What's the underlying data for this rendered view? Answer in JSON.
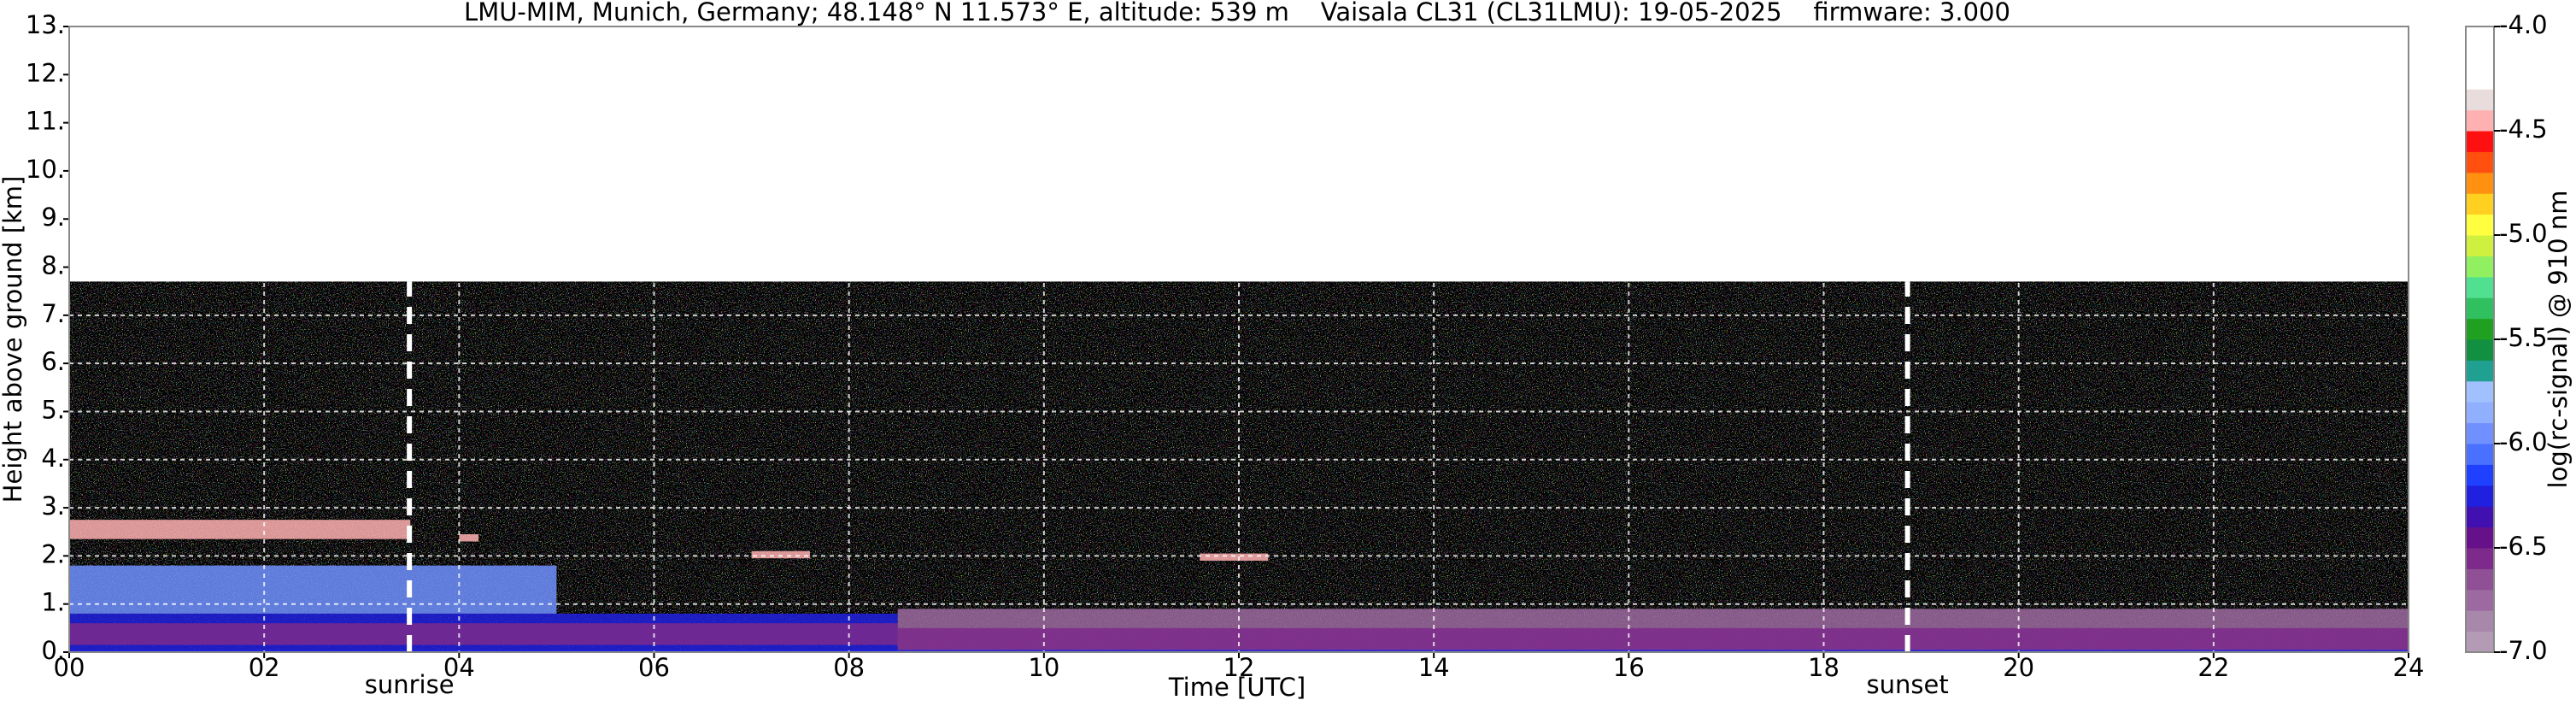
{
  "chart_data": {
    "type": "heatmap",
    "title": "LMU-MIM, Munich, Germany; 48.148° N 11.573° E, altitude: 539 m    Vaisala CL31 (CL31LMU): 19-05-2025    firmware: 3.000",
    "x_label": "Time [UTC]",
    "y_label": "Height above ground [km]",
    "xlim": [
      0,
      24
    ],
    "xticks": [
      {
        "value": 0,
        "label": "00"
      },
      {
        "value": 2,
        "label": "02"
      },
      {
        "value": 4,
        "label": "04"
      },
      {
        "value": 6,
        "label": "06"
      },
      {
        "value": 8,
        "label": "08"
      },
      {
        "value": 10,
        "label": "10"
      },
      {
        "value": 12,
        "label": "12"
      },
      {
        "value": 14,
        "label": "14"
      },
      {
        "value": 16,
        "label": "16"
      },
      {
        "value": 18,
        "label": "18"
      },
      {
        "value": 20,
        "label": "20"
      },
      {
        "value": 22,
        "label": "22"
      },
      {
        "value": 24,
        "label": "24"
      }
    ],
    "ylim": [
      0,
      13
    ],
    "yticks": [
      {
        "value": 0,
        "label": "0."
      },
      {
        "value": 1,
        "label": "1."
      },
      {
        "value": 2,
        "label": "2."
      },
      {
        "value": 3,
        "label": "3."
      },
      {
        "value": 4,
        "label": "4."
      },
      {
        "value": 5,
        "label": "5."
      },
      {
        "value": 6,
        "label": "6."
      },
      {
        "value": 7,
        "label": "7."
      },
      {
        "value": 8,
        "label": "8."
      },
      {
        "value": 9,
        "label": "9."
      },
      {
        "value": 10,
        "label": "10."
      },
      {
        "value": 11,
        "label": "11."
      },
      {
        "value": 12,
        "label": "12."
      },
      {
        "value": 13,
        "label": "13."
      }
    ],
    "grid": true,
    "range_limit": 7.7,
    "regions": [
      {
        "x": [
          0,
          5
        ],
        "y": [
          0.8,
          1.8
        ],
        "value": -5.9
      },
      {
        "x": [
          0,
          8.5
        ],
        "y": [
          0,
          0.8
        ],
        "value": -6.2
      },
      {
        "x": [
          0,
          8.5
        ],
        "y": [
          0.15,
          0.6
        ],
        "value": -6.6
      },
      {
        "x": [
          8.5,
          24
        ],
        "y": [
          0,
          0.9
        ],
        "value": -6.8
      },
      {
        "x": [
          8.5,
          24
        ],
        "y": [
          0.05,
          0.5
        ],
        "value": -6.6
      },
      {
        "x": [
          0,
          24
        ],
        "y": [
          0,
          0.05
        ],
        "value": -6.3
      },
      {
        "x": [
          0,
          3.5
        ],
        "y": [
          2.35,
          2.75
        ],
        "value": -4.4
      },
      {
        "x": [
          4,
          4.2
        ],
        "y": [
          2.3,
          2.45
        ],
        "value": -4.4
      },
      {
        "x": [
          7,
          7.6
        ],
        "y": [
          1.95,
          2.1
        ],
        "value": -4.4
      },
      {
        "x": [
          11.6,
          12.3
        ],
        "y": [
          1.9,
          2.05
        ],
        "value": -4.5
      }
    ],
    "annotations": [
      {
        "text": "sunrise",
        "x": 3.49
      },
      {
        "text": "sunset",
        "x": 18.86
      }
    ],
    "colorbar": {
      "label": "log(rc-signal) @ 910 nm",
      "lim": [
        -7,
        -4
      ],
      "ticks": [
        {
          "value": -7,
          "label": "-7.0"
        },
        {
          "value": -6.5,
          "label": "-6.5"
        },
        {
          "value": -6,
          "label": "-6.0"
        },
        {
          "value": -5.5,
          "label": "-5.5"
        },
        {
          "value": -5,
          "label": "-5.0"
        },
        {
          "value": -4.5,
          "label": "-4.5"
        },
        {
          "value": -4,
          "label": "-4.0"
        }
      ],
      "colors": [
        "#b39bb5",
        "#a888aa",
        "#9c6aa0",
        "#8f5096",
        "#7d2a8c",
        "#66108a",
        "#4010b0",
        "#2020e0",
        "#2040ff",
        "#4a70ff",
        "#7090ff",
        "#90b0ff",
        "#a0c0ff",
        "#20a090",
        "#109040",
        "#20a020",
        "#30c060",
        "#50e090",
        "#90f060",
        "#d0f040",
        "#ffff40",
        "#ffd020",
        "#ff9010",
        "#ff5010",
        "#ff1010",
        "#ffb0b0",
        "#e8dcdc",
        "#ffffff",
        "#ffffff",
        "#ffffff"
      ]
    }
  }
}
